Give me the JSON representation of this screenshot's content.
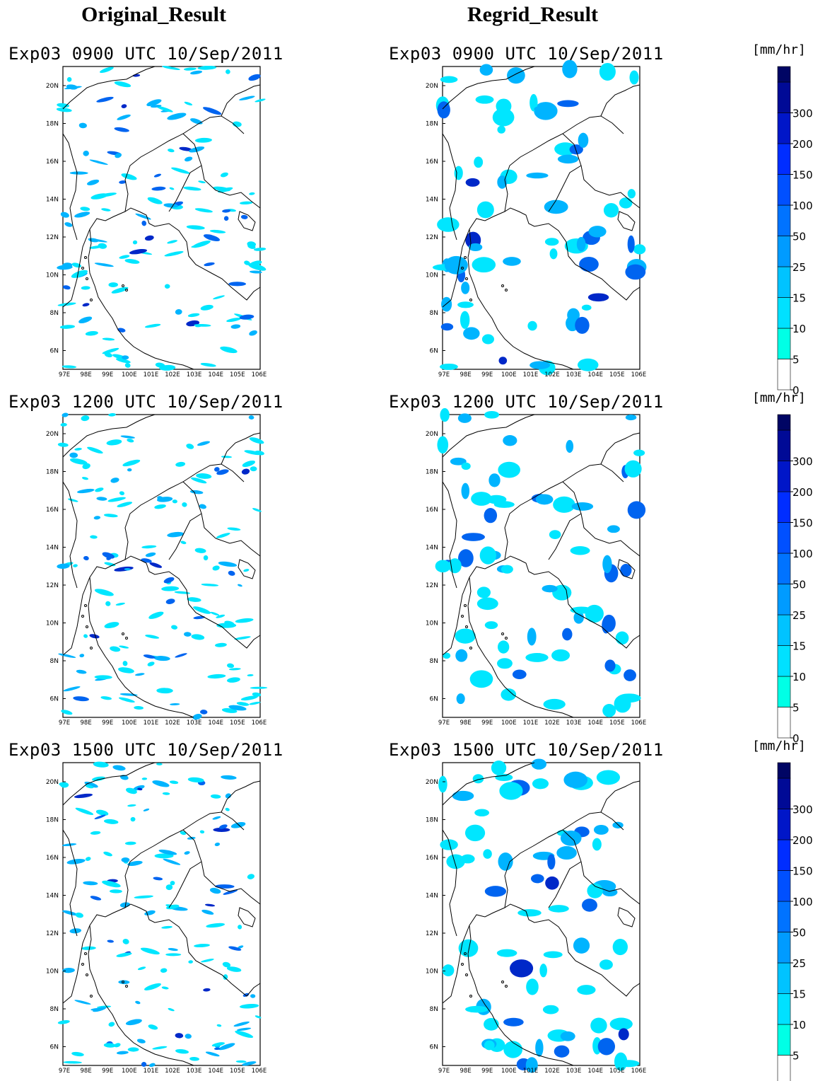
{
  "column_headers": {
    "left": "Original_Result",
    "right": "Regrid_Result"
  },
  "rows": [
    {
      "time_title": "Exp03 0900 UTC 10/Sep/2011"
    },
    {
      "time_title": "Exp03 1200 UTC 10/Sep/2011"
    },
    {
      "time_title": "Exp03 1500 UTC 10/Sep/2011"
    }
  ],
  "map_axes": {
    "lat_labels": [
      "20N",
      "18N",
      "16N",
      "14N",
      "12N",
      "10N",
      "8N",
      "6N"
    ],
    "lon_labels": [
      "97E",
      "98E",
      "99E",
      "100E",
      "101E",
      "102E",
      "103E",
      "104E",
      "105E",
      "106E"
    ]
  },
  "colorbar": {
    "unit": "[mm/hr]",
    "levels": [
      "0",
      "5",
      "10",
      "15",
      "25",
      "50",
      "100",
      "150",
      "200",
      "300"
    ],
    "colors": [
      "#ffffff",
      "#00ffe6",
      "#00e1ff",
      "#00c3ff",
      "#009bff",
      "#0073ff",
      "#0050ff",
      "#002dff",
      "#0016c8",
      "#000a96",
      "#000564"
    ]
  },
  "precip_colors": {
    "light": "#00e6ff",
    "medium": "#00b4ff",
    "heavy": "#0064f0",
    "very_heavy": "#0028c8"
  }
}
